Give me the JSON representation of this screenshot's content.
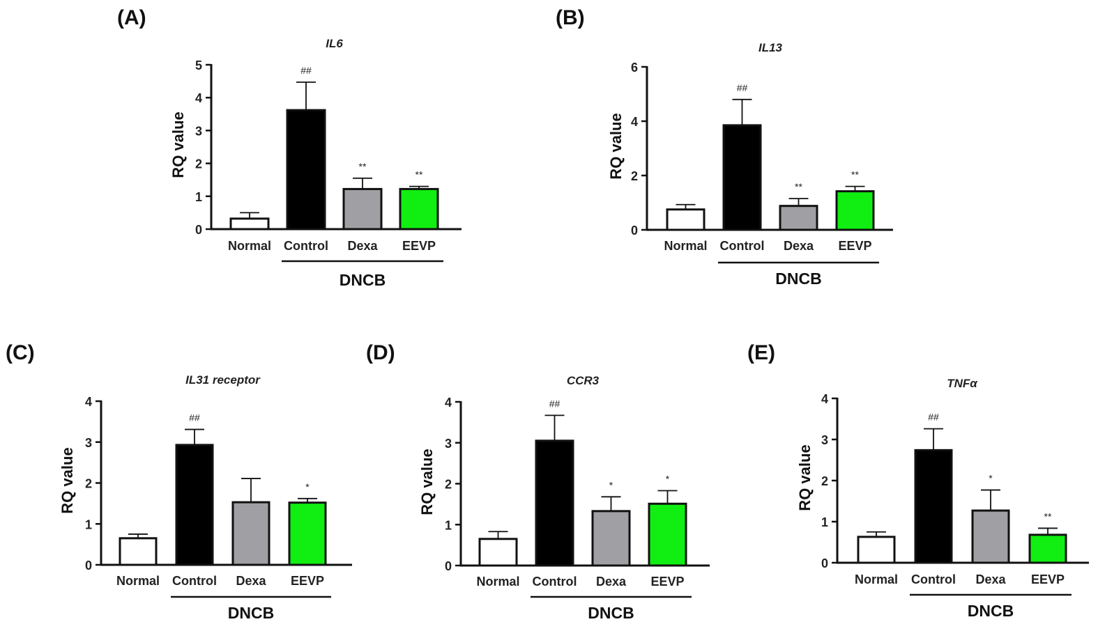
{
  "colors": {
    "Normal": "#ffffff",
    "Control": "#000000",
    "Dexa": "#a0a0a4",
    "EEVP": "#11ee11"
  },
  "chart_data": [
    {
      "panel": "(A)",
      "type": "bar",
      "title": "IL6",
      "ylabel": "RQ value",
      "categories": [
        "Normal",
        "Control",
        "Dexa",
        "EEVP"
      ],
      "values": [
        0.32,
        3.62,
        1.22,
        1.22
      ],
      "errors": [
        0.18,
        0.85,
        0.33,
        0.08
      ],
      "significance": [
        "",
        "##",
        "**",
        "**"
      ],
      "ylim": [
        0,
        5
      ],
      "yticks": [
        "0",
        "1",
        "2",
        "3",
        "4",
        "5"
      ],
      "group_label": "DNCB"
    },
    {
      "panel": "(B)",
      "type": "bar",
      "title": "IL13",
      "ylabel": "RQ value",
      "categories": [
        "Normal",
        "Control",
        "Dexa",
        "EEVP"
      ],
      "values": [
        0.75,
        3.85,
        0.88,
        1.42
      ],
      "errors": [
        0.18,
        0.95,
        0.27,
        0.18
      ],
      "significance": [
        "",
        "##",
        "**",
        "**"
      ],
      "ylim": [
        0,
        6
      ],
      "yticks": [
        "0",
        "2",
        "4",
        "6"
      ],
      "group_label": "DNCB"
    },
    {
      "panel": "(C)",
      "type": "bar",
      "title": "IL31 receptor",
      "ylabel": "RQ value",
      "categories": [
        "Normal",
        "Control",
        "Dexa",
        "EEVP"
      ],
      "values": [
        0.65,
        2.93,
        1.53,
        1.52
      ],
      "errors": [
        0.1,
        0.38,
        0.58,
        0.1
      ],
      "significance": [
        "",
        "##",
        "",
        "*"
      ],
      "ylim": [
        0,
        4
      ],
      "yticks": [
        "0",
        "1",
        "2",
        "3",
        "4"
      ],
      "group_label": "DNCB"
    },
    {
      "panel": "(D)",
      "type": "bar",
      "title": "CCR3",
      "ylabel": "RQ value",
      "categories": [
        "Normal",
        "Control",
        "Dexa",
        "EEVP"
      ],
      "values": [
        0.65,
        3.05,
        1.33,
        1.51
      ],
      "errors": [
        0.18,
        0.62,
        0.35,
        0.32
      ],
      "significance": [
        "",
        "##",
        "*",
        "*"
      ],
      "ylim": [
        0,
        4
      ],
      "yticks": [
        "0",
        "1",
        "2",
        "3",
        "4"
      ],
      "group_label": "DNCB"
    },
    {
      "panel": "(E)",
      "type": "bar",
      "title": "TNFα",
      "ylabel": "RQ value",
      "categories": [
        "Normal",
        "Control",
        "Dexa",
        "EEVP"
      ],
      "values": [
        0.63,
        2.74,
        1.27,
        0.68
      ],
      "errors": [
        0.12,
        0.52,
        0.5,
        0.16
      ],
      "significance": [
        "",
        "##",
        "*",
        "**"
      ],
      "ylim": [
        0,
        4
      ],
      "yticks": [
        "0",
        "1",
        "2",
        "3",
        "4"
      ],
      "group_label": "DNCB"
    }
  ]
}
